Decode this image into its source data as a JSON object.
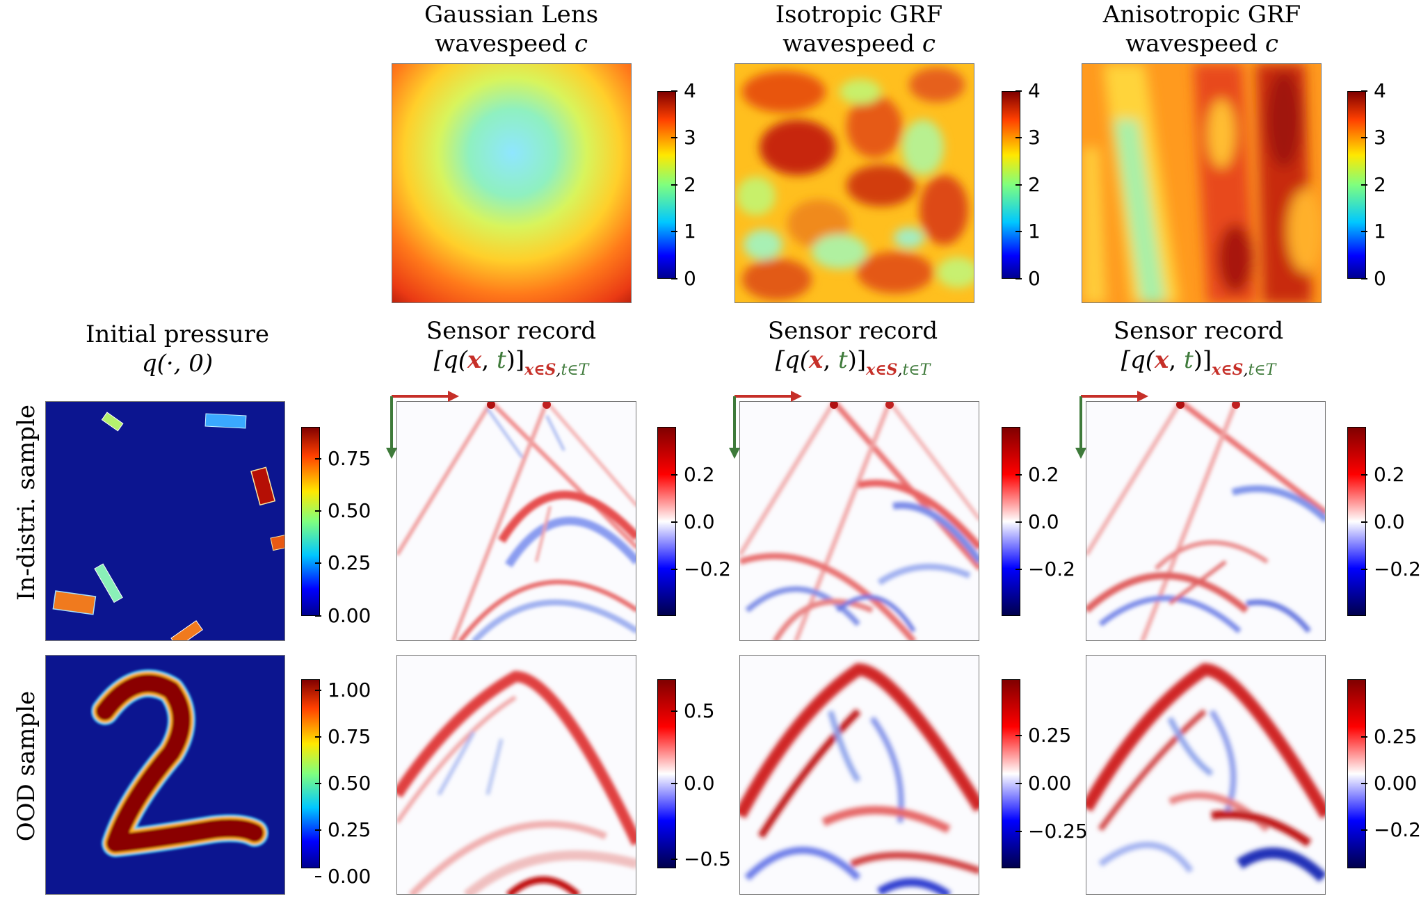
{
  "titles": {
    "gaussian_l1": "Gaussian Lens",
    "gaussian_l2": "wavespeed",
    "iso_l1": "Isotropic GRF",
    "iso_l2": "wavespeed",
    "aniso_l1": "Anisotropic GRF",
    "aniso_l2": "wavespeed",
    "wavespeed_symbol": "c",
    "initial_l1": "Initial pressure",
    "initial_l2": "q(·, 0)",
    "sensor_l1": "Sensor record",
    "sensor_q": "[q(",
    "sensor_x": "x",
    "sensor_comma": ", ",
    "sensor_t": "t",
    "sensor_close": ")]",
    "sensor_sub_x": "x∈S",
    "sensor_sub_sep": ",",
    "sensor_sub_t": "t∈T"
  },
  "row_labels": {
    "in_distri": "In-distri. sample",
    "ood": "OOD sample"
  },
  "chart_data": [
    {
      "type": "heatmap",
      "panel": "wavespeed-gaussian-lens",
      "colormap": "jet",
      "colorbar_ticks": [
        "0",
        "1",
        "2",
        "3",
        "4"
      ],
      "clim": [
        0,
        4
      ]
    },
    {
      "type": "heatmap",
      "panel": "wavespeed-isotropic-grf",
      "colormap": "jet",
      "colorbar_ticks": [
        "0",
        "1",
        "2",
        "3",
        "4"
      ],
      "clim": [
        0,
        4
      ]
    },
    {
      "type": "heatmap",
      "panel": "wavespeed-anisotropic-grf",
      "colormap": "jet",
      "colorbar_ticks": [
        "0",
        "1",
        "2",
        "3",
        "4"
      ],
      "clim": [
        0,
        4
      ]
    },
    {
      "type": "heatmap",
      "panel": "initial-pressure-in-distri",
      "colormap": "jet",
      "colorbar_ticks": [
        "0.00",
        "0.25",
        "0.50",
        "0.75"
      ],
      "clim": [
        0,
        0.9
      ]
    },
    {
      "type": "heatmap",
      "panel": "sensor-gaussian-in-distri",
      "colormap": "seismic",
      "colorbar_ticks": [
        "0.2",
        "0.0",
        "−0.2"
      ],
      "clim": [
        -0.4,
        0.4
      ]
    },
    {
      "type": "heatmap",
      "panel": "sensor-isotropic-in-distri",
      "colormap": "seismic",
      "colorbar_ticks": [
        "0.2",
        "0.0",
        "−0.2"
      ],
      "clim": [
        -0.4,
        0.4
      ]
    },
    {
      "type": "heatmap",
      "panel": "sensor-anisotropic-in-distri",
      "colormap": "seismic",
      "colorbar_ticks": [
        "0.2",
        "0.0",
        "−0.2"
      ],
      "clim": [
        -0.4,
        0.4
      ]
    },
    {
      "type": "heatmap",
      "panel": "initial-pressure-ood",
      "colormap": "jet",
      "colorbar_ticks": [
        "1.00",
        "0.75",
        "0.50",
        "0.25",
        "0.00"
      ],
      "clim": [
        0,
        1.05
      ]
    },
    {
      "type": "heatmap",
      "panel": "sensor-gaussian-ood",
      "colormap": "seismic",
      "colorbar_ticks": [
        "0.5",
        "0.0",
        "−0.5"
      ],
      "clim": [
        -0.65,
        0.65
      ]
    },
    {
      "type": "heatmap",
      "panel": "sensor-isotropic-ood",
      "colormap": "seismic",
      "colorbar_ticks": [
        "0.25",
        "0.00",
        "−0.25"
      ],
      "clim": [
        -0.45,
        0.45
      ]
    },
    {
      "type": "heatmap",
      "panel": "sensor-anisotropic-ood",
      "colormap": "seismic",
      "colorbar_ticks": [
        "0.25",
        "0.00",
        "−0.25"
      ],
      "clim": [
        -0.45,
        0.45
      ]
    }
  ],
  "colors": {
    "arrow_x": "#c62f28",
    "arrow_t": "#3e7a3a"
  }
}
